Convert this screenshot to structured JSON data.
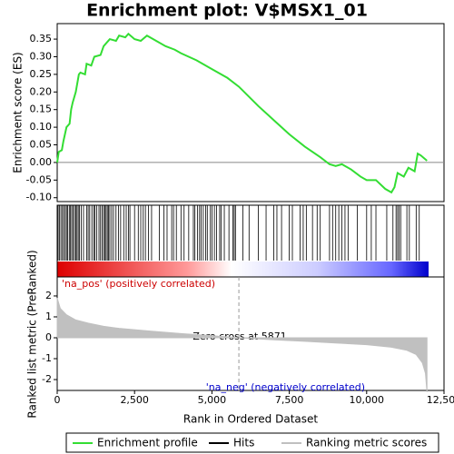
{
  "chart_data": [
    {
      "type": "line",
      "title": "Enrichment plot: V$MSX1_01",
      "ylabel": "Enrichment score (ES)",
      "xlim": [
        0,
        12500
      ],
      "ylim": [
        -0.111,
        0.394
      ],
      "yticks": [
        {
          "value": -0.1,
          "label": "-0.10"
        },
        -0.05,
        {
          "value": 0,
          "label": "0.00"
        },
        0.05,
        {
          "value": 0.1,
          "label": "0.10"
        },
        0.15,
        {
          "value": 0.2,
          "label": "0.20"
        },
        0.25,
        {
          "value": 0.3,
          "label": "0.30"
        },
        0.35
      ],
      "series": [
        {
          "name": "Enrichment profile",
          "color": "#33dd33",
          "x": [
            0,
            50,
            150,
            200,
            300,
            400,
            450,
            500,
            600,
            700,
            750,
            900,
            950,
            1100,
            1200,
            1400,
            1500,
            1600,
            1700,
            1900,
            2000,
            2200,
            2300,
            2500,
            2700,
            2900,
            3000,
            3500,
            3800,
            4000,
            4500,
            5000,
            5500,
            5871,
            6500,
            7000,
            7500,
            8000,
            8500,
            8800,
            9000,
            9200,
            9500,
            9800,
            10000,
            10300,
            10600,
            10800,
            10900,
            11000,
            11200,
            11350,
            11550,
            11650,
            11750,
            11950
          ],
          "values": [
            0,
            0.03,
            0.035,
            0.06,
            0.1,
            0.11,
            0.15,
            0.17,
            0.2,
            0.25,
            0.255,
            0.25,
            0.28,
            0.275,
            0.3,
            0.305,
            0.33,
            0.34,
            0.35,
            0.345,
            0.36,
            0.355,
            0.365,
            0.35,
            0.345,
            0.36,
            0.355,
            0.33,
            0.32,
            0.31,
            0.29,
            0.265,
            0.24,
            0.215,
            0.16,
            0.12,
            0.08,
            0.045,
            0.015,
            -0.005,
            -0.01,
            -0.005,
            -0.02,
            -0.04,
            -0.05,
            -0.05,
            -0.075,
            -0.085,
            -0.07,
            -0.03,
            -0.04,
            -0.015,
            -0.025,
            0.025,
            0.02,
            0.005
          ]
        }
      ]
    },
    {
      "type": "hits",
      "series": [
        {
          "name": "Hits",
          "color": "#000000",
          "x": [
            30,
            70,
            120,
            170,
            210,
            260,
            300,
            340,
            390,
            430,
            470,
            510,
            560,
            600,
            640,
            680,
            720,
            780,
            850,
            950,
            1000,
            1050,
            1120,
            1180,
            1220,
            1280,
            1350,
            1400,
            1450,
            1500,
            1540,
            1580,
            1620,
            1660,
            1700,
            1760,
            1820,
            1900,
            1980,
            2050,
            2150,
            2230,
            2300,
            2350,
            2500,
            2620,
            2700,
            2780,
            2850,
            2950,
            3050,
            3300,
            3450,
            3550,
            3700,
            3760,
            3850,
            4000,
            4100,
            4250,
            4400,
            4450,
            4530,
            4600,
            4650,
            4720,
            4800,
            4850,
            4950,
            5000,
            5080,
            5150,
            5250,
            5300,
            5400,
            5550,
            5680,
            5720,
            5760,
            6000,
            6200,
            6500,
            6750,
            7000,
            7100,
            7250,
            7500,
            7600,
            7850,
            7950,
            8050,
            8250,
            8400,
            8500,
            8800,
            8900,
            9000,
            9100,
            9200,
            9300,
            9400,
            9700,
            10000,
            10150,
            10300,
            10650,
            10850,
            10950,
            11000,
            11050,
            11100,
            11300,
            11380,
            11600,
            11700
          ]
        }
      ]
    },
    {
      "type": "area",
      "ylabel": "Ranked list metric (PreRanked)",
      "xlabel": "Rank in Ordered Dataset",
      "ylim": [
        -2.52,
        2.91
      ],
      "yticks": [
        -2,
        -1,
        0,
        1,
        2
      ],
      "xticks": [
        0,
        {
          "value": 2500,
          "label": "2,500"
        },
        {
          "value": 5000,
          "label": "5,000"
        },
        {
          "value": 7500,
          "label": "7,500"
        },
        {
          "value": 10000,
          "label": "10,000"
        },
        {
          "value": 12500,
          "label": "12,500"
        }
      ],
      "zero_cross": 5871,
      "zero_cross_label": "Zero cross at 5871",
      "pos_label": "'na_pos' (positively correlated)",
      "neg_label": "'na_neg' (negatively correlated)",
      "series": [
        {
          "name": "Ranking metric scores",
          "color": "#c0c0c0",
          "x": [
            0,
            100,
            300,
            600,
            1000,
            1500,
            2000,
            3000,
            4000,
            5000,
            5871,
            7000,
            8000,
            9000,
            10000,
            10800,
            11300,
            11600,
            11800,
            11900,
            11950
          ],
          "values": [
            1.9,
            1.4,
            1.1,
            0.85,
            0.7,
            0.55,
            0.45,
            0.32,
            0.2,
            0.1,
            0,
            -0.1,
            -0.17,
            -0.25,
            -0.33,
            -0.45,
            -0.6,
            -0.8,
            -1.2,
            -1.7,
            -2.6
          ]
        }
      ]
    }
  ]
}
